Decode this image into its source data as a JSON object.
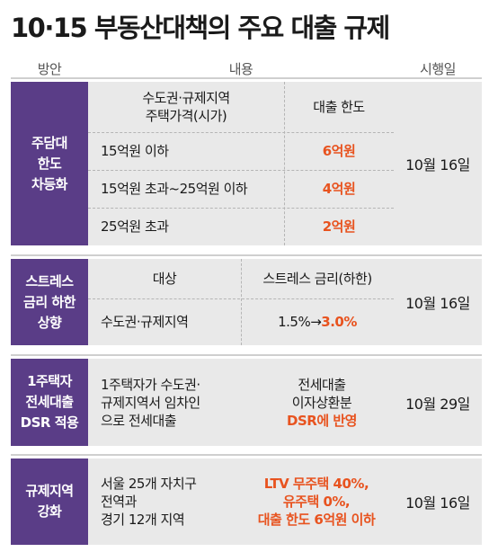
{
  "title": "10·15 부동산대책의 주요 대출 규제",
  "columns": {
    "plan": "방안",
    "content": "내용",
    "effective": "시행일"
  },
  "sections": [
    {
      "name_lines": [
        "주담대",
        "한도",
        "차등화"
      ],
      "header": {
        "left_lines": [
          "수도권·규제지역",
          "주택가격(시가)"
        ],
        "right": "대출 한도"
      },
      "rows": [
        {
          "left": "15억원 이하",
          "right": "6억원"
        },
        {
          "left": "15억원 초과~25억원 이하",
          "right": "4억원"
        },
        {
          "left": "25억원 초과",
          "right": "2억원"
        }
      ],
      "date": "10월 16일"
    },
    {
      "name_lines": [
        "스트레스",
        "금리 하한",
        "상향"
      ],
      "header": {
        "left": "대상",
        "right": "스트레스 금리(하한)"
      },
      "row": {
        "left": "수도권·규제지역",
        "right_before": "1.5%",
        "arrow": "→",
        "right_after": "3.0%"
      },
      "date": "10월 16일"
    },
    {
      "name_lines": [
        "1주택자",
        "전세대출",
        "DSR 적용"
      ],
      "left_lines": [
        "1주택자가 수도권·",
        "규제지역서 임차인",
        "으로 전세대출"
      ],
      "right_lines": [
        "전세대출",
        "이자상환분"
      ],
      "right_highlight": "DSR에 반영",
      "date": "10월 29일"
    },
    {
      "name_lines": [
        "규제지역",
        "강화"
      ],
      "left_lines": [
        "서울 25개 자치구",
        "전역과",
        "경기 12개 지역"
      ],
      "right_lines": [
        "LTV 무주택 40%,",
        "유주택 0%,",
        "대출 한도 6억원 이하"
      ],
      "date": "10월 16일"
    }
  ],
  "colors": {
    "section_label_bg": "#5a3d87",
    "highlight": "#e8531f",
    "section_bg": "#e9e9e9"
  }
}
